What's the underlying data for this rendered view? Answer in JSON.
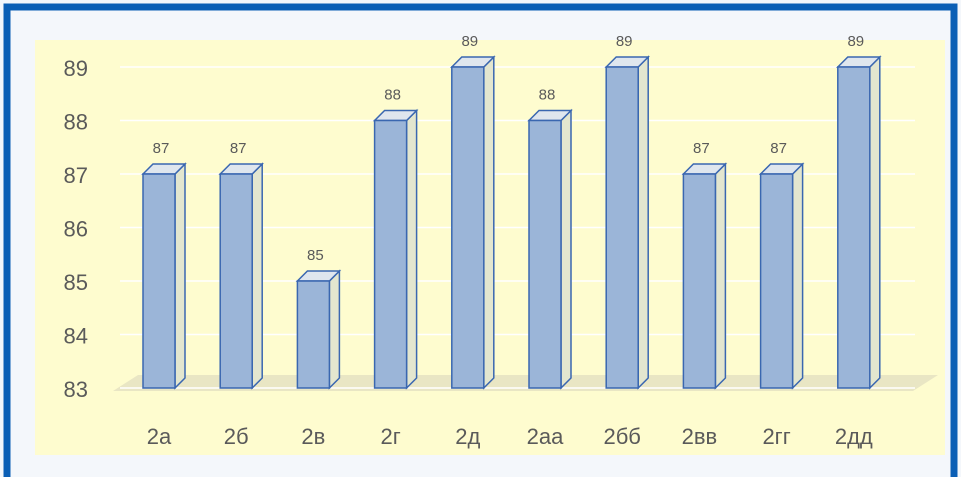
{
  "chart_data": {
    "type": "bar3d",
    "categories": [
      "2а",
      "2б",
      "2в",
      "2г",
      "2д",
      "2аа",
      "2бб",
      "2вв",
      "2гг",
      "2дд"
    ],
    "values": [
      87,
      87,
      85,
      88,
      89,
      88,
      89,
      87,
      87,
      89
    ],
    "color": "#9bb5d8",
    "ylim": [
      83,
      89
    ],
    "yticks": [
      83,
      84,
      85,
      86,
      87,
      88,
      89
    ],
    "grid": true
  }
}
